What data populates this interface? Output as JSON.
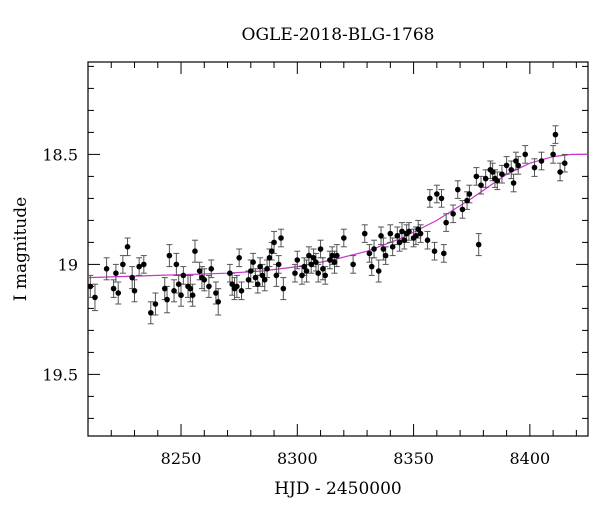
{
  "chart_data": {
    "type": "scatter",
    "title": "OGLE-2018-BLG-1768",
    "xlabel": "HJD - 2450000",
    "ylabel": "I magnitude",
    "xlim": [
      8210,
      8425
    ],
    "ylim": [
      19.78,
      18.08
    ],
    "y_inverted": true,
    "xticks": [
      8250,
      8300,
      8350,
      8400
    ],
    "xtick_labels": [
      "8250",
      "8300",
      "8350",
      "8400"
    ],
    "yticks": [
      18.5,
      19,
      19.5
    ],
    "ytick_labels": [
      "18.5",
      "19",
      "19.5"
    ],
    "grid": false,
    "legend": "none",
    "colors": {
      "points": "#000000",
      "errorbars": "#555555",
      "model": "#cc33cc"
    },
    "series": [
      {
        "kind": "data",
        "points": [
          [
            8211,
            19.1,
            0.05
          ],
          [
            8213,
            19.15,
            0.06
          ],
          [
            8218,
            19.02,
            0.05
          ],
          [
            8221,
            19.11,
            0.04
          ],
          [
            8222,
            19.04,
            0.04
          ],
          [
            8223,
            19.13,
            0.05
          ],
          [
            8225,
            19.0,
            0.04
          ],
          [
            8227,
            18.92,
            0.04
          ],
          [
            8229,
            19.06,
            0.05
          ],
          [
            8230,
            19.12,
            0.05
          ],
          [
            8232,
            19.01,
            0.04
          ],
          [
            8234,
            19.0,
            0.04
          ],
          [
            8237,
            19.22,
            0.05
          ],
          [
            8239,
            19.18,
            0.05
          ],
          [
            8243,
            19.11,
            0.05
          ],
          [
            8244,
            19.16,
            0.06
          ],
          [
            8245,
            18.96,
            0.05
          ],
          [
            8247,
            19.12,
            0.05
          ],
          [
            8248,
            19.0,
            0.05
          ],
          [
            8249,
            19.09,
            0.04
          ],
          [
            8250,
            19.14,
            0.05
          ],
          [
            8251,
            19.05,
            0.04
          ],
          [
            8253,
            19.1,
            0.05
          ],
          [
            8254,
            19.11,
            0.06
          ],
          [
            8255,
            19.14,
            0.05
          ],
          [
            8256,
            18.94,
            0.05
          ],
          [
            8258,
            19.03,
            0.04
          ],
          [
            8259,
            19.06,
            0.05
          ],
          [
            8260,
            19.07,
            0.05
          ],
          [
            8262,
            19.1,
            0.05
          ],
          [
            8263,
            19.02,
            0.04
          ],
          [
            8265,
            19.13,
            0.05
          ],
          [
            8266,
            19.17,
            0.06
          ],
          [
            8271,
            19.04,
            0.04
          ],
          [
            8272,
            19.09,
            0.05
          ],
          [
            8273,
            19.11,
            0.05
          ],
          [
            8274,
            19.1,
            0.05
          ],
          [
            8275,
            18.97,
            0.04
          ],
          [
            8276,
            19.12,
            0.04
          ],
          [
            8279,
            19.07,
            0.04
          ],
          [
            8280,
            19.03,
            0.05
          ],
          [
            8281,
            18.99,
            0.04
          ],
          [
            8282,
            19.06,
            0.04
          ],
          [
            8283,
            19.09,
            0.04
          ],
          [
            8284,
            19.01,
            0.04
          ],
          [
            8285,
            19.05,
            0.05
          ],
          [
            8286,
            19.07,
            0.05
          ],
          [
            8287,
            19.02,
            0.04
          ],
          [
            8288,
            18.97,
            0.04
          ],
          [
            8289,
            18.94,
            0.04
          ],
          [
            8290,
            18.9,
            0.05
          ],
          [
            8291,
            19.05,
            0.05
          ],
          [
            8292,
            19.0,
            0.04
          ],
          [
            8293,
            18.88,
            0.04
          ],
          [
            8294,
            19.11,
            0.05
          ],
          [
            8299,
            19.04,
            0.04
          ],
          [
            8300,
            18.98,
            0.04
          ],
          [
            8302,
            19.05,
            0.04
          ],
          [
            8303,
            19.01,
            0.04
          ],
          [
            8304,
            19.03,
            0.05
          ],
          [
            8305,
            18.96,
            0.04
          ],
          [
            8306,
            19.0,
            0.04
          ],
          [
            8307,
            18.97,
            0.04
          ],
          [
            8308,
            18.99,
            0.04
          ],
          [
            8309,
            19.04,
            0.04
          ],
          [
            8310,
            18.93,
            0.04
          ],
          [
            8311,
            19.02,
            0.05
          ],
          [
            8312,
            19.05,
            0.04
          ],
          [
            8314,
            18.98,
            0.04
          ],
          [
            8315,
            18.96,
            0.04
          ],
          [
            8316,
            18.99,
            0.05
          ],
          [
            8317,
            18.96,
            0.05
          ],
          [
            8320,
            18.88,
            0.04
          ],
          [
            8324,
            19.0,
            0.04
          ],
          [
            8329,
            18.86,
            0.04
          ],
          [
            8331,
            18.95,
            0.04
          ],
          [
            8332,
            19.01,
            0.04
          ],
          [
            8333,
            18.93,
            0.04
          ],
          [
            8335,
            19.03,
            0.05
          ],
          [
            8336,
            18.87,
            0.04
          ],
          [
            8337,
            18.93,
            0.05
          ],
          [
            8338,
            18.96,
            0.04
          ],
          [
            8340,
            18.86,
            0.04
          ],
          [
            8341,
            18.92,
            0.04
          ],
          [
            8343,
            18.87,
            0.04
          ],
          [
            8344,
            18.9,
            0.04
          ],
          [
            8345,
            18.85,
            0.04
          ],
          [
            8346,
            18.89,
            0.04
          ],
          [
            8347,
            18.86,
            0.04
          ],
          [
            8348,
            18.85,
            0.04
          ],
          [
            8350,
            18.88,
            0.04
          ],
          [
            8351,
            18.87,
            0.04
          ],
          [
            8352,
            18.84,
            0.04
          ],
          [
            8353,
            18.86,
            0.04
          ],
          [
            8356,
            18.89,
            0.04
          ],
          [
            8357,
            18.7,
            0.04
          ],
          [
            8359,
            18.94,
            0.04
          ],
          [
            8360,
            18.68,
            0.04
          ],
          [
            8362,
            18.7,
            0.04
          ],
          [
            8363,
            18.95,
            0.04
          ],
          [
            8364,
            18.81,
            0.04
          ],
          [
            8367,
            18.77,
            0.04
          ],
          [
            8369,
            18.66,
            0.04
          ],
          [
            8371,
            18.75,
            0.04
          ],
          [
            8373,
            18.71,
            0.04
          ],
          [
            8374,
            18.68,
            0.04
          ],
          [
            8377,
            18.6,
            0.04
          ],
          [
            8378,
            18.91,
            0.05
          ],
          [
            8379,
            18.64,
            0.04
          ],
          [
            8381,
            18.61,
            0.04
          ],
          [
            8383,
            18.57,
            0.04
          ],
          [
            8384,
            18.58,
            0.04
          ],
          [
            8385,
            18.61,
            0.04
          ],
          [
            8386,
            18.62,
            0.04
          ],
          [
            8388,
            18.59,
            0.04
          ],
          [
            8390,
            18.55,
            0.04
          ],
          [
            8392,
            18.57,
            0.04
          ],
          [
            8393,
            18.63,
            0.04
          ],
          [
            8394,
            18.53,
            0.04
          ],
          [
            8395,
            18.55,
            0.04
          ],
          [
            8398,
            18.5,
            0.04
          ],
          [
            8402,
            18.56,
            0.04
          ],
          [
            8405,
            18.53,
            0.04
          ],
          [
            8410,
            18.5,
            0.04
          ],
          [
            8411,
            18.41,
            0.04
          ],
          [
            8413,
            18.58,
            0.04
          ],
          [
            8415,
            18.54,
            0.04
          ]
        ]
      },
      {
        "kind": "model",
        "x": [
          8210,
          8225,
          8240,
          8255,
          8270,
          8285,
          8300,
          8315,
          8330,
          8345,
          8360,
          8375,
          8390,
          8400,
          8410,
          8418,
          8425
        ],
        "y": [
          19.06,
          19.055,
          19.05,
          19.045,
          19.04,
          19.03,
          19.01,
          18.98,
          18.94,
          18.88,
          18.8,
          18.7,
          18.59,
          18.54,
          18.51,
          18.5,
          18.5
        ]
      }
    ]
  }
}
